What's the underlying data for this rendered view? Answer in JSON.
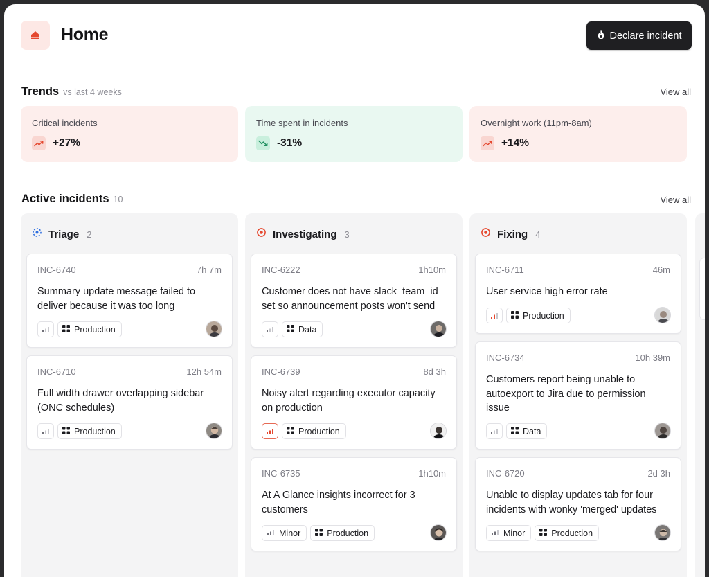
{
  "header": {
    "title": "Home",
    "declare_label": "Declare incident",
    "accent": "#e5482f"
  },
  "trends": {
    "title": "Trends",
    "subtitle": "vs last 4 weeks",
    "view_all": "View all",
    "cards": [
      {
        "label": "Critical incidents",
        "value": "+27%",
        "direction": "up",
        "tone": "bad"
      },
      {
        "label": "Time spent in incidents",
        "value": "-31%",
        "direction": "down",
        "tone": "good"
      },
      {
        "label": "Overnight work (11pm-8am)",
        "value": "+14%",
        "direction": "up",
        "tone": "bad"
      }
    ]
  },
  "active": {
    "title": "Active incidents",
    "count": "10",
    "view_all": "View all",
    "columns": [
      {
        "name": "Triage",
        "count": "2",
        "icon": "triage-status-icon",
        "cards": [
          {
            "id": "INC-6740",
            "time": "7h 7m",
            "title": "Summary update message failed to deliver because it was too long",
            "severity": "low",
            "severity_label": "",
            "tag": "Production",
            "avatar": "avatar-1"
          },
          {
            "id": "INC-6710",
            "time": "12h 54m",
            "title": "Full width drawer overlapping sidebar (ONC schedules)",
            "severity": "low",
            "severity_label": "",
            "tag": "Production",
            "avatar": "avatar-2"
          }
        ]
      },
      {
        "name": "Investigating",
        "count": "3",
        "icon": "investigating-status-icon",
        "cards": [
          {
            "id": "INC-6222",
            "time": "1h10m",
            "title": "Customer does not have slack_team_id set so announcement posts won't send",
            "severity": "low",
            "severity_label": "",
            "tag": "Data",
            "avatar": "avatar-3"
          },
          {
            "id": "INC-6739",
            "time": "8d 3h",
            "title": "Noisy alert regarding executor capacity on production",
            "severity": "critical",
            "severity_label": "",
            "tag": "Production",
            "avatar": "avatar-4"
          },
          {
            "id": "INC-6735",
            "time": "1h10m",
            "title": "At A Glance insights incorrect for 3 customers",
            "severity": "minor",
            "severity_label": "Minor",
            "tag": "Production",
            "avatar": "avatar-5"
          }
        ]
      },
      {
        "name": "Fixing",
        "count": "4",
        "icon": "fixing-status-icon",
        "cards": [
          {
            "id": "INC-6711",
            "time": "46m",
            "title": "User service high error rate",
            "severity": "high",
            "severity_label": "",
            "tag": "Production",
            "avatar": "avatar-6"
          },
          {
            "id": "INC-6734",
            "time": "10h 39m",
            "title": "Customers report being unable to autoexport to Jira due to permission issue",
            "severity": "low",
            "severity_label": "",
            "tag": "Data",
            "avatar": "avatar-7"
          },
          {
            "id": "INC-6720",
            "time": "2d 3h",
            "title": "Unable to display updates tab for four incidents with wonky 'merged' updates",
            "severity": "minor",
            "severity_label": "Minor",
            "tag": "Production",
            "avatar": "avatar-8"
          }
        ]
      }
    ]
  }
}
